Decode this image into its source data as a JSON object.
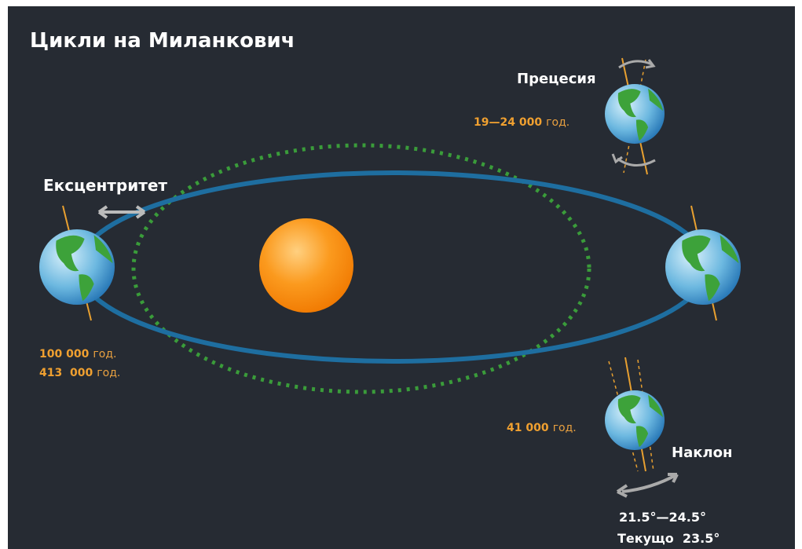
{
  "title": "Цикли на Миланкович",
  "precession": {
    "label": "Прецесия",
    "period": {
      "value": "19—24 000",
      "unit": "год."
    }
  },
  "eccentricity": {
    "label": "Ексцентритет",
    "periods": [
      {
        "value": "100 000",
        "unit": "год."
      },
      {
        "value": "413  000",
        "unit": "год."
      }
    ]
  },
  "obliquity": {
    "label": "Наклон",
    "period": {
      "value": "41 000",
      "unit": "год."
    },
    "range": "21.5°—24.5°",
    "current": "Текущо  23.5°"
  }
}
